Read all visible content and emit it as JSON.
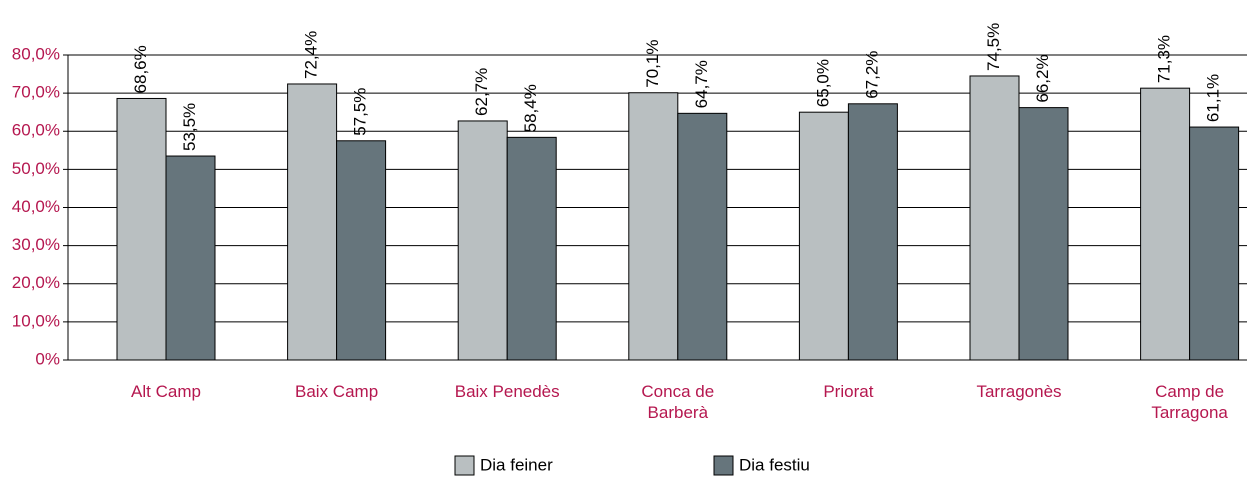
{
  "chart_data": {
    "type": "bar",
    "categories": [
      "Alt Camp",
      "Baix Camp",
      "Baix Penedès",
      "Conca de Barberà",
      "Priorat",
      "Tarragonès",
      "Camp de Tarragona"
    ],
    "series": [
      {
        "name": "Dia feiner",
        "color": "#b9bfc1",
        "values": [
          68.6,
          72.4,
          62.7,
          70.1,
          65.0,
          74.5,
          71.3
        ],
        "value_labels": [
          "68,6%",
          "72,4%",
          "62,7%",
          "70,1%",
          "65,0%",
          "74,5%",
          "71,3%"
        ]
      },
      {
        "name": "Dia festiu",
        "color": "#66757c",
        "values": [
          53.5,
          57.5,
          58.4,
          64.7,
          67.2,
          66.2,
          61.1
        ],
        "value_labels": [
          "53,5%",
          "57,5%",
          "58,4%",
          "64,7%",
          "67,2%",
          "66,2%",
          "61,1%"
        ]
      }
    ],
    "ylim": [
      0,
      80
    ],
    "yticks": [
      {
        "value": 0,
        "label": "0%"
      },
      {
        "value": 10,
        "label": "10,0%"
      },
      {
        "value": 20,
        "label": "20,0%"
      },
      {
        "value": 30,
        "label": "30,0%"
      },
      {
        "value": 40,
        "label": "40,0%"
      },
      {
        "value": 50,
        "label": "50,0%"
      },
      {
        "value": 60,
        "label": "60,0%"
      },
      {
        "value": 70,
        "label": "70,0%"
      },
      {
        "value": 80,
        "label": "80,0%"
      }
    ],
    "grid": true,
    "legend": "bottom"
  }
}
